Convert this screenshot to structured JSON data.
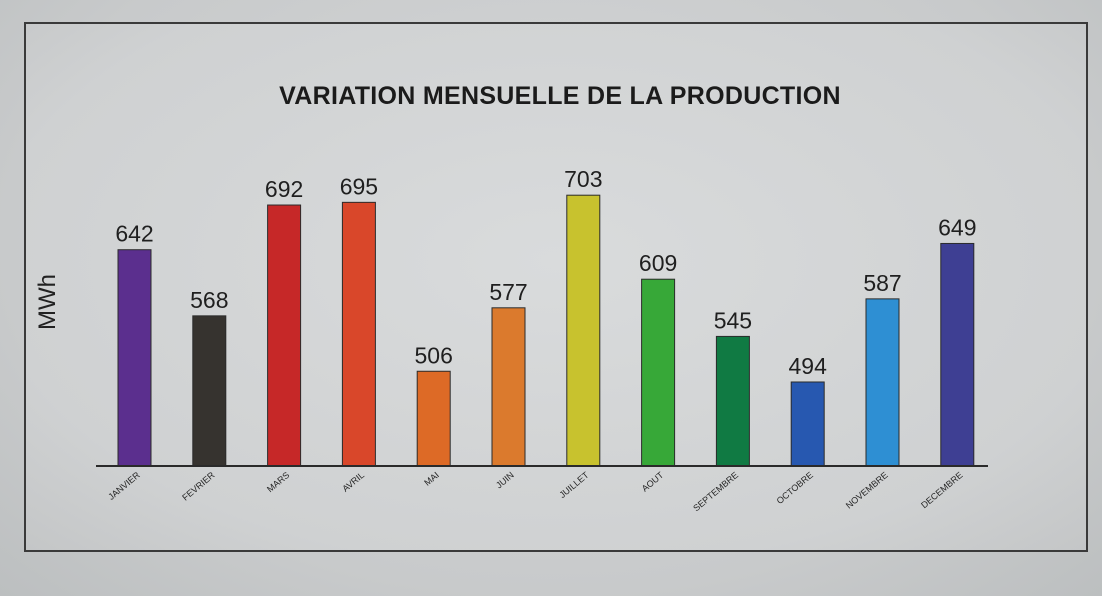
{
  "chart_data": {
    "type": "bar",
    "title": "VARIATION MENSUELLE DE LA PRODUCTION",
    "ylabel": "MWh",
    "xlabel": "",
    "categories": [
      "JANVIER",
      "FEVRIER",
      "MARS",
      "AVRIL",
      "MAI",
      "JUIN",
      "JUILLET",
      "AOUT",
      "SEPTEMBRE",
      "OCTOBRE",
      "NOVEMBRE",
      "DECEMBRE"
    ],
    "values": [
      642,
      568,
      692,
      695,
      506,
      577,
      703,
      609,
      545,
      494,
      587,
      649
    ],
    "colors": [
      "#5b2f8e",
      "#36332f",
      "#c62828",
      "#d9472a",
      "#dd6a26",
      "#db7a2d",
      "#c8c22e",
      "#37a838",
      "#107a43",
      "#2758b0",
      "#2e8fd3",
      "#3e3f93"
    ],
    "ylim": [
      0,
      720
    ],
    "grid": false,
    "legend": "none"
  }
}
